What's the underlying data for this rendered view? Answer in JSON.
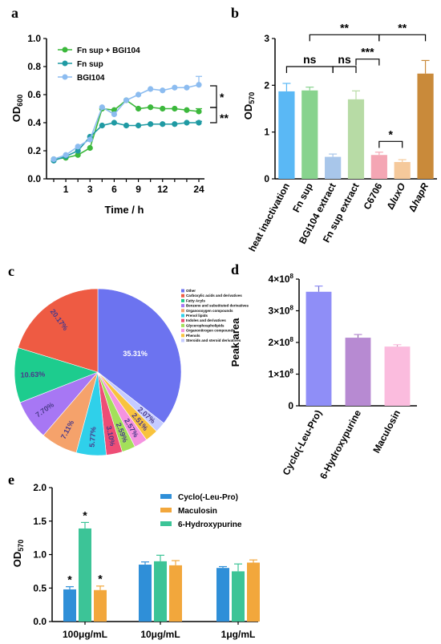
{
  "panels": {
    "a": "a",
    "b": "b",
    "c": "c",
    "d": "d",
    "e": "e"
  },
  "chart_data": [
    {
      "id": "a",
      "type": "line",
      "x_tick_labels": [
        "1",
        "3",
        "6",
        "9",
        "12",
        "24"
      ],
      "xlabel": "Time / h",
      "ylabel": "OD",
      "ylabel_sub": "600",
      "ylim": [
        0,
        1.0
      ],
      "y_ticks": [
        "0.0",
        "0.2",
        "0.4",
        "0.6",
        "0.8",
        "1.0"
      ],
      "x": [
        0,
        1,
        2,
        3,
        4,
        5,
        6,
        7,
        8,
        9,
        10,
        11,
        12
      ],
      "series": [
        {
          "name": "Fn sup + BGI104",
          "color": "#3cb83c",
          "values": [
            0.14,
            0.15,
            0.17,
            0.22,
            0.5,
            0.49,
            0.56,
            0.5,
            0.51,
            0.5,
            0.5,
            0.49,
            0.48
          ]
        },
        {
          "name": "Fn sup",
          "color": "#1f9aa3",
          "values": [
            0.13,
            0.16,
            0.2,
            0.3,
            0.38,
            0.4,
            0.38,
            0.38,
            0.39,
            0.39,
            0.39,
            0.4,
            0.4
          ]
        },
        {
          "name": "BGI104",
          "color": "#8cbcf0",
          "values": [
            0.14,
            0.17,
            0.23,
            0.28,
            0.51,
            0.46,
            0.56,
            0.6,
            0.64,
            0.63,
            0.65,
            0.65,
            0.67
          ]
        }
      ],
      "errors_last": [
        0.02,
        0.01,
        0.06
      ],
      "significance": [
        "*",
        "**"
      ]
    },
    {
      "id": "b",
      "type": "bar",
      "categories": [
        "heat inactivation",
        "Fn sup",
        "BGI104 extract",
        "Fn sup extract",
        "C6706",
        "ΔluxO",
        "ΔhapR"
      ],
      "values": [
        1.87,
        1.89,
        0.47,
        1.7,
        0.51,
        0.36,
        2.25
      ],
      "errors": [
        0.17,
        0.07,
        0.06,
        0.18,
        0.06,
        0.05,
        0.28
      ],
      "colors": [
        "#5ab8f5",
        "#88d38e",
        "#a8c6ea",
        "#b7dba5",
        "#f4a6b4",
        "#f5c99b",
        "#c98a3a"
      ],
      "ylabel": "OD",
      "ylabel_sub": "570",
      "ylim": [
        0,
        3
      ],
      "y_ticks": [
        "0",
        "1",
        "2",
        "3"
      ],
      "comparisons": [
        {
          "from": 1,
          "to": 4,
          "label": "**",
          "level": 3.08
        },
        {
          "from": 4,
          "to": 6,
          "label": "**",
          "level": 3.08
        },
        {
          "from": 3,
          "to": 4,
          "label": "***",
          "level": 2.56
        },
        {
          "from": 0,
          "to": 2,
          "label": "ns",
          "level": 2.4
        },
        {
          "from": 2,
          "to": 3,
          "label": "ns",
          "level": 2.4
        },
        {
          "from": 4,
          "to": 5,
          "label": "*",
          "level": 0.8
        }
      ]
    },
    {
      "id": "c",
      "type": "pie",
      "slices": [
        {
          "label": "Other",
          "value": 35.31,
          "color": "#6c73f0",
          "text": "35.31%"
        },
        {
          "label": "Steroids and steroid derivatives",
          "value": 2.07,
          "color": "#c5cbff",
          "text": "2.07%"
        },
        {
          "label": "Phenols",
          "value": 2.51,
          "color": "#f8c33e",
          "text": "2.51%"
        },
        {
          "label": "Organonitrogen compounds",
          "value": 2.57,
          "color": "#f593e0",
          "text": "2.57%"
        },
        {
          "label": "Glycerophospholipids",
          "value": 2.59,
          "color": "#a3e05a",
          "text": "2.59%"
        },
        {
          "label": "Indoles and derivatives",
          "value": 3.1,
          "color": "#ee4d76",
          "text": "3.10%"
        },
        {
          "label": "Prenol lipids",
          "value": 5.77,
          "color": "#2fd0ea",
          "text": "5.77%"
        },
        {
          "label": "Organooxygen compounds",
          "value": 7.11,
          "color": "#f5a26b",
          "text": "7.11%"
        },
        {
          "label": "Benzene and substituted derivatives",
          "value": 7.7,
          "color": "#a777f4",
          "text": "7.70%"
        },
        {
          "label": "Fatty Acyls",
          "value": 10.63,
          "color": "#1dcc8e",
          "text": "10.63%"
        },
        {
          "label": "Carboxylic acids and derivatives",
          "value": 20.17,
          "color": "#ee5b43",
          "text": "20.17%"
        }
      ],
      "legend": [
        "Other",
        "Carboxylic acids and derivatives",
        "Fatty Acyls",
        "Benzene and substituted derivatives",
        "Organooxygen compounds",
        "Prenol lipids",
        "Indoles and derivatives",
        "Glycerophospholipids",
        "Organonitrogen compounds",
        "Phenols",
        "Steroids and steroid derivatives"
      ],
      "legend_colors": [
        "#6c73f0",
        "#ee5b43",
        "#1dcc8e",
        "#a777f4",
        "#f5a26b",
        "#2fd0ea",
        "#ee4d76",
        "#a3e05a",
        "#f593e0",
        "#f8c33e",
        "#c5cbff"
      ]
    },
    {
      "id": "d",
      "type": "bar",
      "categories": [
        "Cyclo(-Leu-Pro)",
        "6-Hydroxypurine",
        "Maculosin"
      ],
      "values": [
        360000000,
        215000000,
        187000000
      ],
      "errors": [
        18000000,
        10000000,
        6000000
      ],
      "colors": [
        "#8f8ef7",
        "#b78ad2",
        "#fbbcde"
      ],
      "ylabel": "Peak area",
      "ylim": [
        0,
        400000000
      ],
      "y_ticks_mantissa": [
        "0",
        "1×10",
        "2×10",
        "3×10",
        "4×10"
      ],
      "y_ticks_exp": [
        "",
        "8",
        "8",
        "8",
        "8"
      ]
    },
    {
      "id": "e",
      "type": "bar",
      "categories": [
        "100μg/mL",
        "10μg/mL",
        "1μg/mL"
      ],
      "series": [
        {
          "name": "Cyclo(-Leu-Pro)",
          "color": "#2f8fd8",
          "values": [
            0.48,
            0.85,
            0.8
          ],
          "errors": [
            0.04,
            0.04,
            0.02
          ]
        },
        {
          "name": "6-Hydroxypurine",
          "color": "#3cc497",
          "values": [
            1.39,
            0.9,
            0.75
          ],
          "errors": [
            0.09,
            0.09,
            0.11
          ]
        },
        {
          "name": "Maculosin",
          "color": "#f2a73c",
          "values": [
            0.47,
            0.84,
            0.88
          ],
          "errors": [
            0.06,
            0.07,
            0.04
          ]
        }
      ],
      "legend_order": [
        "Cyclo(-Leu-Pro)",
        "Maculosin",
        "6-Hydroxypurine"
      ],
      "significance": [
        "*",
        "*",
        "*"
      ],
      "ylabel": "OD",
      "ylabel_sub": "570",
      "ylim": [
        0,
        2.0
      ],
      "y_ticks": [
        "0.0",
        "0.5",
        "1.0",
        "1.5",
        "2.0"
      ]
    }
  ]
}
